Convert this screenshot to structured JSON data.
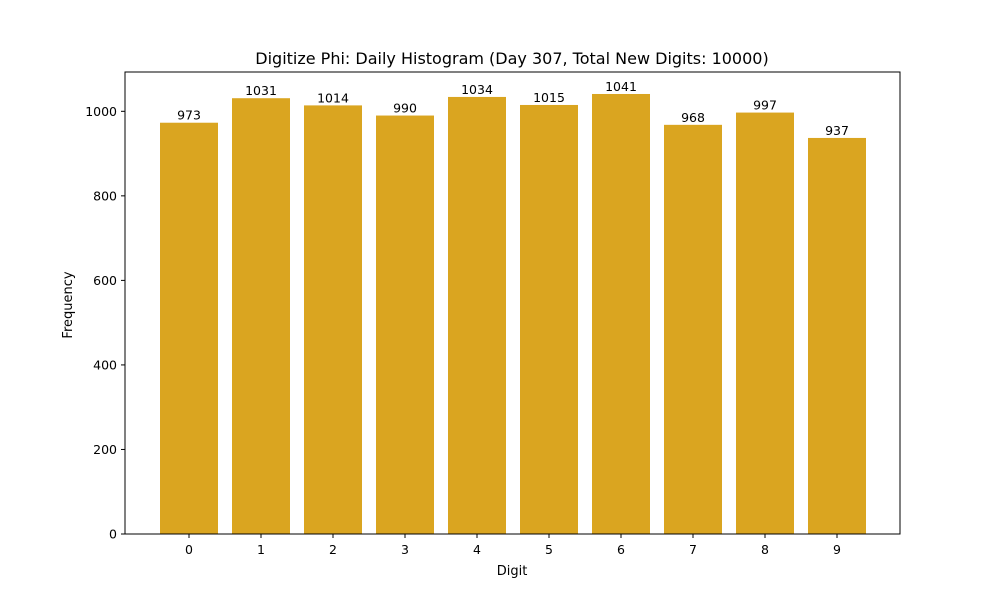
{
  "chart_data": {
    "type": "bar",
    "title": "Digitize Phi: Daily Histogram (Day 307, Total New Digits: 10000)",
    "xlabel": "Digit",
    "ylabel": "Frequency",
    "categories": [
      "0",
      "1",
      "2",
      "3",
      "4",
      "5",
      "6",
      "7",
      "8",
      "9"
    ],
    "values": [
      973,
      1031,
      1014,
      990,
      1034,
      1015,
      1041,
      968,
      997,
      937
    ],
    "data_labels": [
      "973",
      "1031",
      "1014",
      "990",
      "1034",
      "1015",
      "1041",
      "968",
      "997",
      "937"
    ],
    "ylim": [
      0,
      1093
    ],
    "yticks": [
      0,
      200,
      400,
      600,
      800,
      1000
    ],
    "ytick_labels": [
      "0",
      "200",
      "400",
      "600",
      "800",
      "1000"
    ],
    "grid": false,
    "bar_color": "#DAA520"
  }
}
